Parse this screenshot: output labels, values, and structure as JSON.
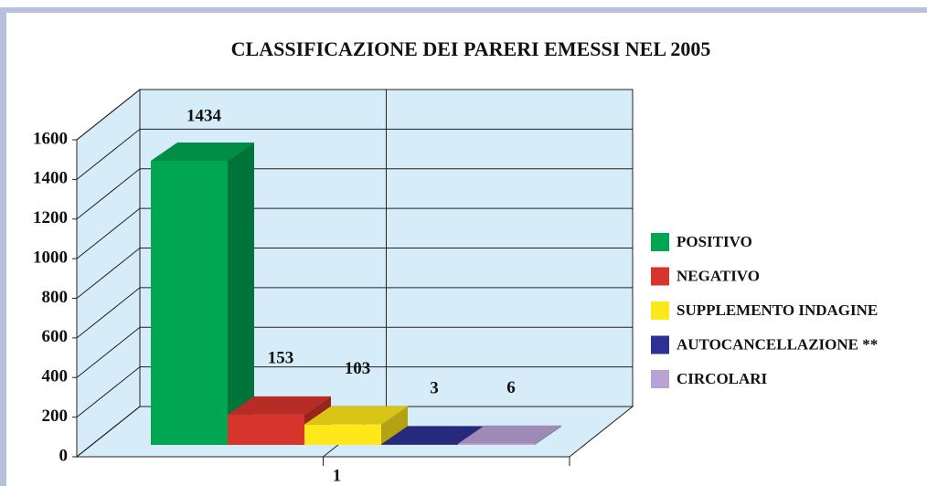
{
  "chart_data": {
    "type": "bar3d",
    "title": "CLASSIFICAZIONE DEI PARERI EMESSI NEL 2005",
    "categories": [
      "1"
    ],
    "series": [
      {
        "name": "POSITIVO",
        "color": "#00a651",
        "values": [
          1434
        ]
      },
      {
        "name": "NEGATIVO",
        "color": "#d7352b",
        "values": [
          153
        ]
      },
      {
        "name": "SUPPLEMENTO INDAGINE",
        "color": "#ffe81a",
        "values": [
          103
        ]
      },
      {
        "name": "AUTOCANCELLAZIONE **",
        "color": "#2e3192",
        "values": [
          3
        ]
      },
      {
        "name": "CIRCOLARI",
        "color": "#b9a3d6",
        "values": [
          6
        ]
      }
    ],
    "ylim": [
      0,
      1600
    ],
    "yticks": [
      0,
      200,
      400,
      600,
      800,
      1000,
      1200,
      1400,
      1600
    ],
    "grid": true,
    "legend": "right"
  }
}
